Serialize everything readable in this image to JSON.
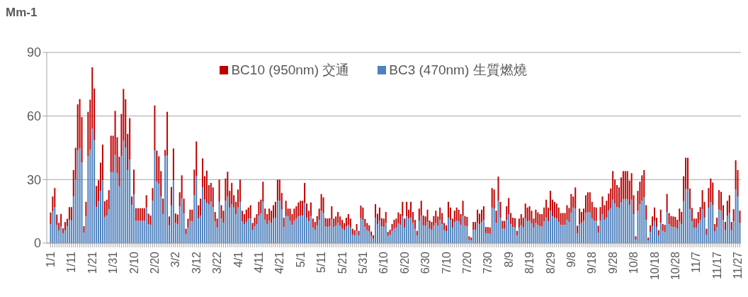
{
  "chart_data": {
    "type": "bar",
    "ylabel": "Mm-1",
    "stacked": true,
    "grid": "y",
    "legend": "top",
    "ylim": [
      0,
      90
    ],
    "yticks": [
      0,
      30,
      60,
      90
    ],
    "categories": [
      "1/1",
      null,
      null,
      null,
      null,
      null,
      null,
      null,
      null,
      null,
      "1/11",
      null,
      null,
      null,
      null,
      null,
      null,
      null,
      null,
      null,
      "1/21",
      null,
      null,
      null,
      null,
      null,
      null,
      null,
      null,
      null,
      "1/31",
      null,
      null,
      null,
      null,
      null,
      null,
      null,
      null,
      null,
      "2/10",
      null,
      null,
      null,
      null,
      null,
      null,
      null,
      null,
      null,
      "2/20",
      null,
      null,
      null,
      null,
      null,
      null,
      null,
      null,
      null,
      "3/2",
      null,
      null,
      null,
      null,
      null,
      null,
      null,
      null,
      null,
      "3/12",
      null,
      null,
      null,
      null,
      null,
      null,
      null,
      null,
      null,
      "3/22",
      null,
      null,
      null,
      null,
      null,
      null,
      null,
      null,
      null,
      "4/1",
      null,
      null,
      null,
      null,
      null,
      null,
      null,
      null,
      null,
      "4/11",
      null,
      null,
      null,
      null,
      null,
      null,
      null,
      null,
      null,
      "4/21",
      null,
      null,
      null,
      null,
      null,
      null,
      null,
      null,
      null,
      "5/1",
      null,
      null,
      null,
      null,
      null,
      null,
      null,
      null,
      null,
      "5/11",
      null,
      null,
      null,
      null,
      null,
      null,
      null,
      null,
      null,
      "5/21",
      null,
      null,
      null,
      null,
      null,
      null,
      null,
      null,
      null,
      "5/31",
      null,
      null,
      null,
      null,
      null,
      null,
      null,
      null,
      null,
      "6/10",
      null,
      null,
      null,
      null,
      null,
      null,
      null,
      null,
      null,
      "6/20",
      null,
      null,
      null,
      null,
      null,
      null,
      null,
      null,
      null,
      "6/30",
      null,
      null,
      null,
      null,
      null,
      null,
      null,
      null,
      null,
      "7/10",
      null,
      null,
      null,
      null,
      null,
      null,
      null,
      null,
      null,
      "7/20",
      null,
      null,
      null,
      null,
      null,
      null,
      null,
      null,
      null,
      "7/30",
      null,
      null,
      null,
      null,
      null,
      null,
      null,
      null,
      null,
      "8/9",
      null,
      null,
      null,
      null,
      null,
      null,
      null,
      null,
      null,
      "8/19",
      null,
      null,
      null,
      null,
      null,
      null,
      null,
      null,
      null,
      "8/29",
      null,
      null,
      null,
      null,
      null,
      null,
      null,
      null,
      null,
      "9/8",
      null,
      null,
      null,
      null,
      null,
      null,
      null,
      null,
      null,
      "9/18",
      null,
      null,
      null,
      null,
      null,
      null,
      null,
      null,
      null,
      "9/28",
      null,
      null,
      null,
      null,
      null,
      null,
      null,
      null,
      null,
      "10/8",
      null,
      null,
      null,
      null,
      null,
      null,
      null,
      null,
      null,
      "10/18",
      null,
      null,
      null,
      null,
      null,
      null,
      null,
      null,
      null,
      "10/28",
      null,
      null,
      null,
      null,
      null,
      null,
      null,
      null,
      null,
      "11/7",
      null,
      null,
      null,
      null,
      null,
      null,
      null,
      null,
      null,
      "11/17",
      null,
      null,
      null,
      null,
      null,
      null,
      null,
      null,
      null,
      "11/27",
      null
    ],
    "series": [
      {
        "name": "BC3 (470nm) 生質燃燒",
        "color": "#4f81bd",
        "values": [
          9,
          15,
          17,
          8.5,
          6,
          8,
          4.7,
          6,
          8,
          11,
          10.7,
          22,
          30,
          43.7,
          44.7,
          38,
          5,
          12.6,
          41,
          44,
          54,
          48.6,
          17,
          19.8,
          24.7,
          29.7,
          12.4,
          13,
          16,
          33.5,
          33.5,
          41.6,
          33,
          26.8,
          41,
          48.4,
          45,
          34.5,
          39.5,
          18,
          23,
          10.5,
          10.5,
          10.5,
          10.5,
          10.5,
          16.8,
          9,
          8.6,
          20,
          43.7,
          29,
          28,
          22,
          13.7,
          41,
          41.5,
          8.4,
          17.7,
          29.7,
          9.5,
          9,
          17.4,
          21,
          14,
          4.2,
          7.4,
          10.5,
          10.3,
          22.6,
          31.6,
          11.6,
          13,
          26.3,
          20.5,
          19,
          18.4,
          19.5,
          17,
          10.3,
          7.4,
          19.5,
          11.6,
          9.7,
          20,
          22,
          16.8,
          18.4,
          16.8,
          13.7,
          16.8,
          19.5,
          10.3,
          9,
          10,
          11.6,
          11.6,
          6.3,
          7.9,
          9,
          13,
          14,
          19.5,
          11,
          9,
          10.5,
          9.5,
          11.6,
          12,
          20,
          20,
          15.8,
          7.6,
          12.8,
          12.6,
          10.5,
          8.6,
          10.5,
          11.6,
          12.6,
          13,
          13,
          19,
          12,
          10.3,
          12.6,
          7.4,
          6.3,
          8.4,
          11,
          15.3,
          14.2,
          7.9,
          7.6,
          7.9,
          11.4,
          7.6,
          8.2,
          9.5,
          8.2,
          6.8,
          6.1,
          7.9,
          8.6,
          7.4,
          4,
          3.7,
          5.8,
          3.7,
          11.6,
          11,
          7.6,
          6.1,
          5.5,
          3.4,
          2.1,
          12,
          9,
          10.7,
          7.9,
          7.6,
          9.5,
          3.4,
          4,
          5.8,
          6.8,
          7.4,
          9.3,
          8.6,
          12.6,
          7.4,
          12.6,
          11.6,
          12,
          9.5,
          6.8,
          3.7,
          10.5,
          13,
          8.4,
          8.2,
          10,
          6.8,
          6.3,
          8.2,
          9.5,
          8.2,
          11,
          9,
          6.1,
          5.5,
          12,
          11,
          7.4,
          10,
          10.7,
          10.3,
          8.6,
          12.8,
          8.2,
          7.9,
          1.6,
          1.3,
          6.3,
          6.3,
          9.5,
          9,
          10,
          11,
          4.7,
          4.7,
          4.4,
          16.8,
          16.3,
          9.5,
          20,
          12,
          6.8,
          6.8,
          11,
          13.7,
          9,
          7.6,
          7.4,
          3.7,
          7.4,
          8.4,
          7.4,
          11.6,
          10.3,
          10.7,
          9.3,
          7.4,
          9.5,
          8.6,
          7.9,
          7.9,
          10.3,
          12,
          10.3,
          15.3,
          12.6,
          12,
          11.6,
          10,
          8.6,
          8.6,
          8.6,
          11,
          10,
          14.2,
          16.8,
          16.3,
          4.7,
          9,
          9.5,
          10.5,
          14.2,
          14.5,
          14.5,
          11.6,
          10.5,
          10.5,
          5,
          10.7,
          13.7,
          11,
          12,
          15.3,
          16.3,
          20.5,
          18.7,
          17,
          16.6,
          19.2,
          20.8,
          20.8,
          20.8,
          18.1,
          20.5,
          13.7,
          1.6,
          15.3,
          18.4,
          20,
          21.6,
          11,
          1.3,
          5.3,
          7.9,
          10.5,
          7.6,
          3.7,
          9.7,
          5.8,
          5.3,
          14.7,
          9,
          7.9,
          7.6,
          7.6,
          6.8,
          10.3,
          9,
          19.8,
          25.5,
          25.3,
          16,
          10.3,
          7.2,
          7.2,
          9.3,
          10.9,
          16,
          12,
          4,
          16.6,
          19.4,
          17.9,
          5.5,
          7.6,
          15.8,
          15.3,
          11,
          6.1,
          12.8,
          14.2,
          6.1,
          10.3,
          25.3,
          21.9,
          9.5
        ]
      },
      {
        "name": "BC10 (950nm) 交通",
        "color": "#c00000",
        "values": [
          5.5,
          7,
          9,
          5,
          3.6,
          5.8,
          2.3,
          4,
          3.5,
          6,
          6.3,
          12.5,
          15,
          21.8,
          23.3,
          21.5,
          3,
          6.9,
          21,
          23.7,
          29,
          24.4,
          10,
          9.9,
          13.3,
          16.8,
          7.4,
          7.5,
          9,
          17.2,
          17.2,
          20.8,
          17,
          14,
          20,
          24.4,
          22.9,
          17.1,
          19.5,
          4,
          11.7,
          6,
          6,
          6,
          6,
          6,
          5.8,
          4.9,
          4.4,
          6,
          21.3,
          14.7,
          13,
          12,
          7.3,
          3,
          20.5,
          4.2,
          8.8,
          15,
          4.5,
          4.5,
          6.6,
          11,
          7,
          2.6,
          4.1,
          5.3,
          5.5,
          12.1,
          16.4,
          6.3,
          8,
          13.7,
          11.1,
          15.2,
          9,
          8.9,
          9.3,
          4.4,
          4.2,
          10.5,
          6.3,
          5.6,
          10.5,
          11.7,
          7.9,
          10,
          5.8,
          5.8,
          8.5,
          10.5,
          5,
          4.7,
          5.8,
          5.2,
          6.3,
          3.2,
          4.1,
          4.7,
          6.5,
          6.5,
          9.5,
          5.3,
          4.7,
          5.8,
          5.8,
          6.3,
          7.5,
          10,
          10,
          7.9,
          4.4,
          7.2,
          3.7,
          5.8,
          5.1,
          5.8,
          5.8,
          6.6,
          7,
          7,
          9.4,
          6.7,
          5,
          6.6,
          4.2,
          3.7,
          4.4,
          5.3,
          7.9,
          7.4,
          3.9,
          4,
          3.9,
          6,
          4,
          4.4,
          5.2,
          4.4,
          4.2,
          3.4,
          4.1,
          5.1,
          4.2,
          2.8,
          2.4,
          3.2,
          2.1,
          6.1,
          5.8,
          3.8,
          3.4,
          2.9,
          2.1,
          1.6,
          6.4,
          4.9,
          6.1,
          3.9,
          4,
          5.2,
          1.9,
          2.3,
          3.2,
          4.2,
          4.2,
          5.2,
          5.1,
          6.9,
          4.2,
          6.9,
          4.2,
          7.5,
          5.2,
          4.2,
          2.1,
          5.8,
          7,
          4.6,
          4.4,
          5.8,
          3.9,
          3.7,
          4.6,
          5.8,
          4.4,
          5.8,
          5.2,
          3.4,
          2.9,
          7.5,
          5.8,
          4.2,
          5.3,
          6.1,
          5.5,
          5.1,
          7.2,
          4.6,
          4.5,
          1.6,
          1.3,
          3.7,
          3.7,
          6.3,
          4.9,
          5.8,
          6.4,
          2.9,
          2.9,
          3,
          9.2,
          9,
          5.8,
          11.4,
          7.5,
          3.7,
          3.7,
          6.4,
          7.6,
          5.2,
          4.4,
          4.4,
          2.1,
          4.2,
          5.3,
          4.6,
          7.1,
          6.5,
          6.7,
          6,
          4.2,
          6.3,
          5.9,
          5.8,
          5.8,
          6.5,
          8.5,
          6.5,
          9.4,
          7.9,
          7.5,
          7.1,
          6.8,
          5.6,
          5.6,
          5.6,
          6.9,
          6.6,
          9,
          5.2,
          10,
          3.5,
          7.3,
          5.2,
          5.8,
          8.4,
          9.5,
          9.5,
          7.9,
          6.5,
          6.3,
          3.2,
          6.3,
          8.3,
          6.9,
          8,
          8.1,
          9.5,
          13.5,
          11.3,
          10.4,
          9.7,
          11.8,
          13.2,
          13.2,
          13.2,
          11.4,
          12.5,
          8.9,
          1.6,
          9.4,
          10.6,
          12,
          12.9,
          6.9,
          1.3,
          3.1,
          4.7,
          6.3,
          4.4,
          2.4,
          6.1,
          3.2,
          3.3,
          8.5,
          5.2,
          4.9,
          5,
          4.8,
          4.2,
          6,
          5.7,
          11.8,
          14.8,
          15,
          9.8,
          6.3,
          4.4,
          4.4,
          5.4,
          6.1,
          9,
          7.5,
          2.8,
          9.4,
          11.1,
          10.7,
          3.5,
          4.4,
          9.2,
          8.9,
          6.9,
          3.9,
          7.2,
          8.4,
          3.9,
          5.7,
          13.8,
          12.6,
          5.8
        ]
      }
    ]
  }
}
